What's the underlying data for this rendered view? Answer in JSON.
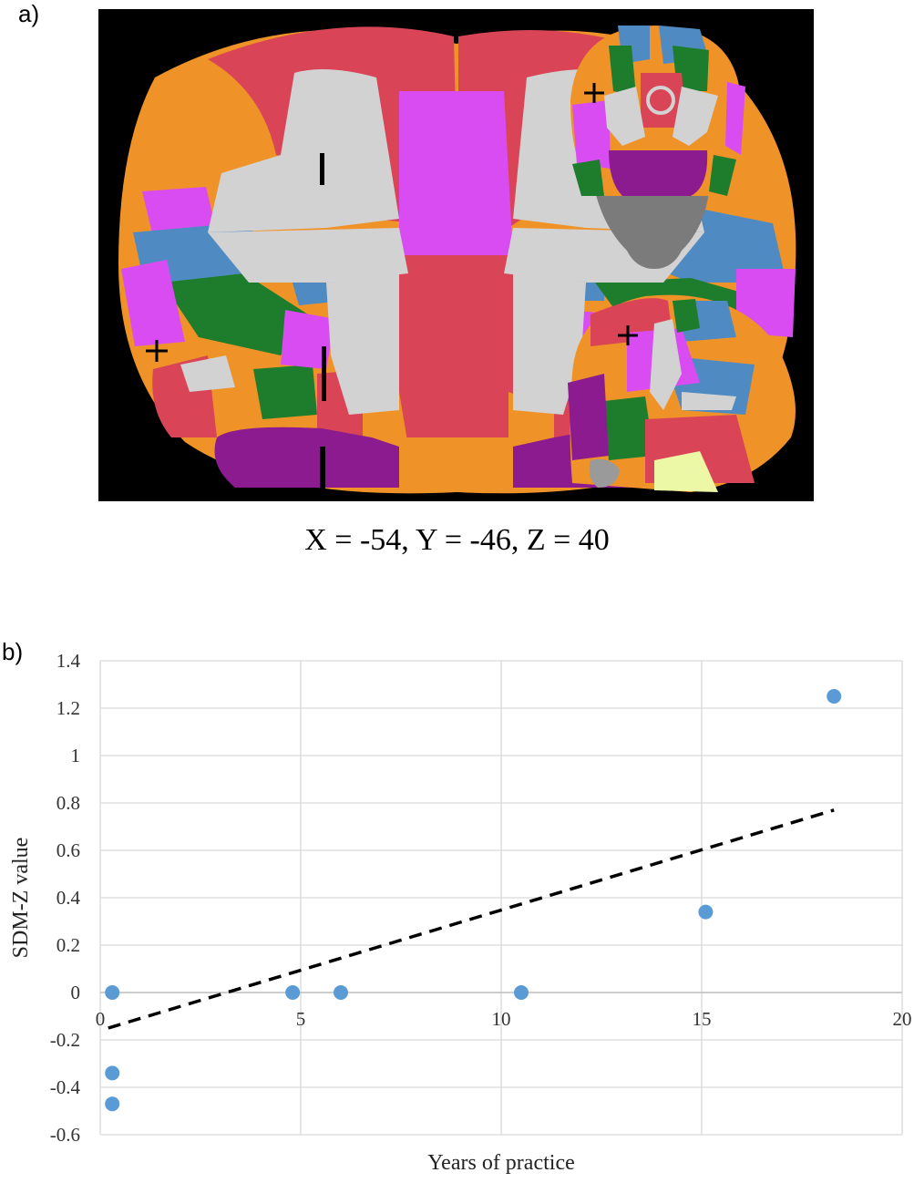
{
  "panel_a": {
    "label": "a)",
    "coordinates": "X = -54, Y = -46, Z = 40",
    "colors": {
      "background": "#000000",
      "white_matter": "#d2d2d2",
      "red": "#d94556",
      "orange": "#ef9328",
      "magenta": "#d94cf1",
      "blue": "#4f8bc2",
      "green": "#1d7d2c",
      "purple": "#8b1b8f",
      "pale_yellow": "#ecf8a6",
      "crosshair": "#000000"
    }
  },
  "panel_b": {
    "label": "b)"
  },
  "chart_data": {
    "type": "scatter",
    "title": "",
    "xlabel": "Years of practice",
    "ylabel": "SDM-Z value",
    "xlim": [
      0,
      20
    ],
    "ylim": [
      -0.6,
      1.4
    ],
    "x_ticks": [
      "0",
      "5",
      "10",
      "15",
      "20"
    ],
    "y_ticks": [
      "1.4",
      "1.2",
      "1",
      "0.8",
      "0.6",
      "0.4",
      "0.2",
      "0",
      "-0.2",
      "-0.4",
      "-0.6"
    ],
    "grid": true,
    "legend": "none",
    "point_color": "#5b9bd5",
    "series": [
      {
        "points": [
          {
            "x": 0.3,
            "y": 0
          },
          {
            "x": 0.3,
            "y": -0.34
          },
          {
            "x": 0.3,
            "y": -0.47
          },
          {
            "x": 4.8,
            "y": 0
          },
          {
            "x": 6.0,
            "y": 0
          },
          {
            "x": 10.5,
            "y": 0
          },
          {
            "x": 15.1,
            "y": 0.34
          },
          {
            "x": 18.3,
            "y": 1.25
          }
        ]
      }
    ],
    "trendline": {
      "style": "dashed",
      "x": [
        0.2,
        18.3
      ],
      "y": [
        -0.15,
        0.77
      ]
    }
  }
}
